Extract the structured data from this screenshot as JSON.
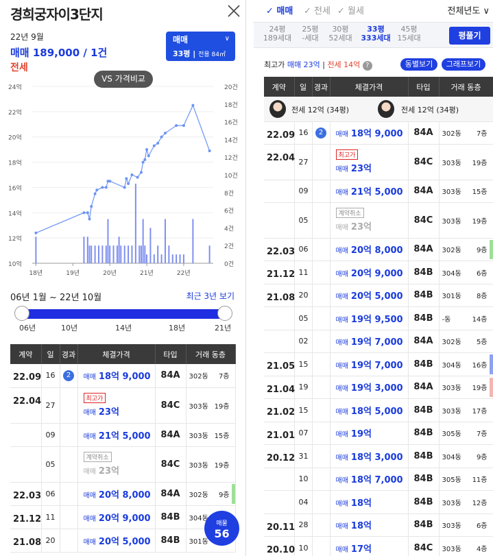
{
  "left": {
    "title": "경희궁자이3단지",
    "date": "22년 9월",
    "sale_line": "매매 189,000 / 1건",
    "jeonse_label": "전세",
    "badge": {
      "type": "매매",
      "size": "33평",
      "area": "전용 84㎡",
      "chevron": "∨"
    },
    "vs_button": "VS 가격비교",
    "range_text": "06년 1월 ~ 22년 10월",
    "recent_link": "최근 3년 보기",
    "slider_labels": [
      "06년",
      "10년",
      "14년",
      "18년",
      "21년"
    ],
    "fab": {
      "label": "매물",
      "count": "56"
    }
  },
  "chart_data": {
    "type": "line",
    "y_left_ticks": [
      "24억",
      "22억",
      "20억",
      "18억",
      "16억",
      "14억",
      "12억",
      "10억"
    ],
    "y_right_ticks": [
      "20건",
      "18건",
      "16건",
      "14건",
      "12건",
      "10건",
      "8건",
      "6건",
      "4건",
      "2건",
      "0건"
    ],
    "x_ticks": [
      "18년",
      "19년",
      "20년",
      "21년",
      "22년"
    ],
    "ylim": [
      10,
      24
    ],
    "price_series": [
      [
        2018.0,
        12.4
      ],
      [
        2019.3,
        14.0
      ],
      [
        2019.4,
        14.0
      ],
      [
        2019.45,
        13.5
      ],
      [
        2019.5,
        14.5
      ],
      [
        2019.6,
        15.5
      ],
      [
        2019.65,
        15.8
      ],
      [
        2019.8,
        16.0
      ],
      [
        2019.9,
        16.0
      ],
      [
        2019.95,
        16.5
      ],
      [
        2020.0,
        16.5
      ],
      [
        2020.4,
        16.0
      ],
      [
        2020.45,
        16.7
      ],
      [
        2020.5,
        16.3
      ],
      [
        2020.6,
        17.0
      ],
      [
        2020.75,
        16.8
      ],
      [
        2020.85,
        17.2
      ],
      [
        2020.9,
        18.0
      ],
      [
        2020.95,
        18.2
      ],
      [
        2021.0,
        19.0
      ],
      [
        2021.05,
        18.5
      ],
      [
        2021.2,
        19.3
      ],
      [
        2021.3,
        19.5
      ],
      [
        2021.4,
        20.0
      ],
      [
        2021.5,
        20.3
      ],
      [
        2021.8,
        20.9
      ],
      [
        2022.0,
        20.9
      ],
      [
        2022.25,
        22.5
      ],
      [
        2022.7,
        18.9
      ]
    ],
    "volume": [
      [
        2018.0,
        3
      ],
      [
        2019.3,
        3
      ],
      [
        2019.4,
        3
      ],
      [
        2019.45,
        2
      ],
      [
        2019.5,
        2
      ],
      [
        2019.6,
        2
      ],
      [
        2019.7,
        2
      ],
      [
        2019.8,
        2
      ],
      [
        2019.9,
        2
      ],
      [
        2019.95,
        5
      ],
      [
        2020.0,
        2
      ],
      [
        2020.1,
        2
      ],
      [
        2020.2,
        2
      ],
      [
        2020.25,
        3
      ],
      [
        2020.3,
        2
      ],
      [
        2020.4,
        2
      ],
      [
        2020.5,
        2
      ],
      [
        2020.6,
        2
      ],
      [
        2020.7,
        9
      ],
      [
        2020.8,
        2
      ],
      [
        2020.85,
        2
      ],
      [
        2020.9,
        5
      ],
      [
        2020.95,
        2
      ],
      [
        2021.0,
        1
      ],
      [
        2021.1,
        4
      ],
      [
        2021.2,
        1
      ],
      [
        2021.3,
        2
      ],
      [
        2021.4,
        1
      ],
      [
        2021.5,
        5
      ],
      [
        2021.6,
        2
      ],
      [
        2021.7,
        1
      ],
      [
        2021.8,
        1
      ],
      [
        2021.9,
        1
      ],
      [
        2022.0,
        1
      ],
      [
        2022.25,
        5
      ],
      [
        2022.7,
        2
      ]
    ]
  },
  "table": {
    "headers": [
      "계약",
      "일",
      "경과",
      "체결가격",
      "타입",
      "거래 동층"
    ],
    "avatars": [
      "전세 12억 (34평)",
      "전세 12억 (34평)"
    ],
    "rows": [
      {
        "date": "22.09",
        "day": "16",
        "circle": "2",
        "kind": "매매",
        "price": "18억 9,000",
        "type": "84A",
        "dong": "302동",
        "floor": "7층"
      },
      {
        "date": "22.04",
        "day": "27",
        "tag": "최고가",
        "kind": "매매",
        "price": "23억",
        "type": "84C",
        "dong": "303동",
        "floor": "19층"
      },
      {
        "date": "",
        "day": "09",
        "kind": "매매",
        "price": "21억 5,000",
        "type": "84A",
        "dong": "303동",
        "floor": "15층"
      },
      {
        "date": "",
        "day": "05",
        "cancel": "계약취소",
        "kind": "매매",
        "price": "23억",
        "type": "84C",
        "dong": "303동",
        "floor": "19층"
      },
      {
        "date": "22.03",
        "day": "06",
        "kind": "매매",
        "price": "20억 8,000",
        "type": "84A",
        "dong": "302동",
        "floor": "9층",
        "bar": "g"
      },
      {
        "date": "21.12",
        "day": "11",
        "kind": "매매",
        "price": "20억 9,000",
        "type": "84B",
        "dong": "304동",
        "floor": "6층"
      },
      {
        "date": "21.08",
        "day": "20",
        "kind": "매매",
        "price": "20억 5,000",
        "type": "84B",
        "dong": "301동",
        "floor": "8층"
      },
      {
        "date": "",
        "day": "05",
        "kind": "매매",
        "price": "19억 9,500",
        "type": "84B",
        "dong": "-동",
        "floor": "14층"
      },
      {
        "date": "",
        "day": "02",
        "kind": "매매",
        "price": "19억 7,000",
        "type": "84A",
        "dong": "302동",
        "floor": "5층"
      },
      {
        "date": "21.05",
        "day": "15",
        "kind": "매매",
        "price": "19억 7,000",
        "type": "84B",
        "dong": "304동",
        "floor": "16층",
        "bar": "b"
      },
      {
        "date": "21.04",
        "day": "19",
        "kind": "매매",
        "price": "19억 3,000",
        "type": "84A",
        "dong": "303동",
        "floor": "19층",
        "bar": "p"
      },
      {
        "date": "21.02",
        "day": "15",
        "kind": "매매",
        "price": "18억 5,000",
        "type": "84B",
        "dong": "303동",
        "floor": "17층"
      },
      {
        "date": "21.01",
        "day": "07",
        "kind": "매매",
        "price": "19억",
        "type": "84B",
        "dong": "305동",
        "floor": "7층"
      },
      {
        "date": "20.12",
        "day": "31",
        "kind": "매매",
        "price": "18억 3,000",
        "type": "84B",
        "dong": "304동",
        "floor": "9층"
      },
      {
        "date": "",
        "day": "10",
        "kind": "매매",
        "price": "18억 7,000",
        "type": "84B",
        "dong": "305동",
        "floor": "11층"
      },
      {
        "date": "",
        "day": "04",
        "kind": "매매",
        "price": "18억",
        "type": "84B",
        "dong": "303동",
        "floor": "12층"
      },
      {
        "date": "20.11",
        "day": "28",
        "kind": "매매",
        "price": "18억",
        "type": "84B",
        "dong": "303동",
        "floor": "6층"
      },
      {
        "date": "20.10",
        "day": "10",
        "kind": "매매",
        "price": "17억",
        "type": "84C",
        "dong": "303동",
        "floor": "4층"
      }
    ]
  },
  "right": {
    "tabs": [
      "매매",
      "전세",
      "월세"
    ],
    "year_select": "전체년도 ∨",
    "pyeong_tabs": [
      {
        "py": "24평",
        "hh": "189세대"
      },
      {
        "py": "25평",
        "hh": "-세대"
      },
      {
        "py": "30평",
        "hh": "52세대"
      },
      {
        "py": "33평",
        "hh": "333세대"
      },
      {
        "py": "45평",
        "hh": "15세대"
      }
    ],
    "pyeong_button": "평풀기",
    "max_label": "최고가",
    "max_sale": "매매 23억",
    "max_jeonse": "전세 14억",
    "info_icon": "?",
    "dong_button": "동별보기",
    "graph_button": "그래프보기"
  },
  "icons": {
    "close": "close-icon",
    "check": "check-icon",
    "info": "info-icon"
  }
}
